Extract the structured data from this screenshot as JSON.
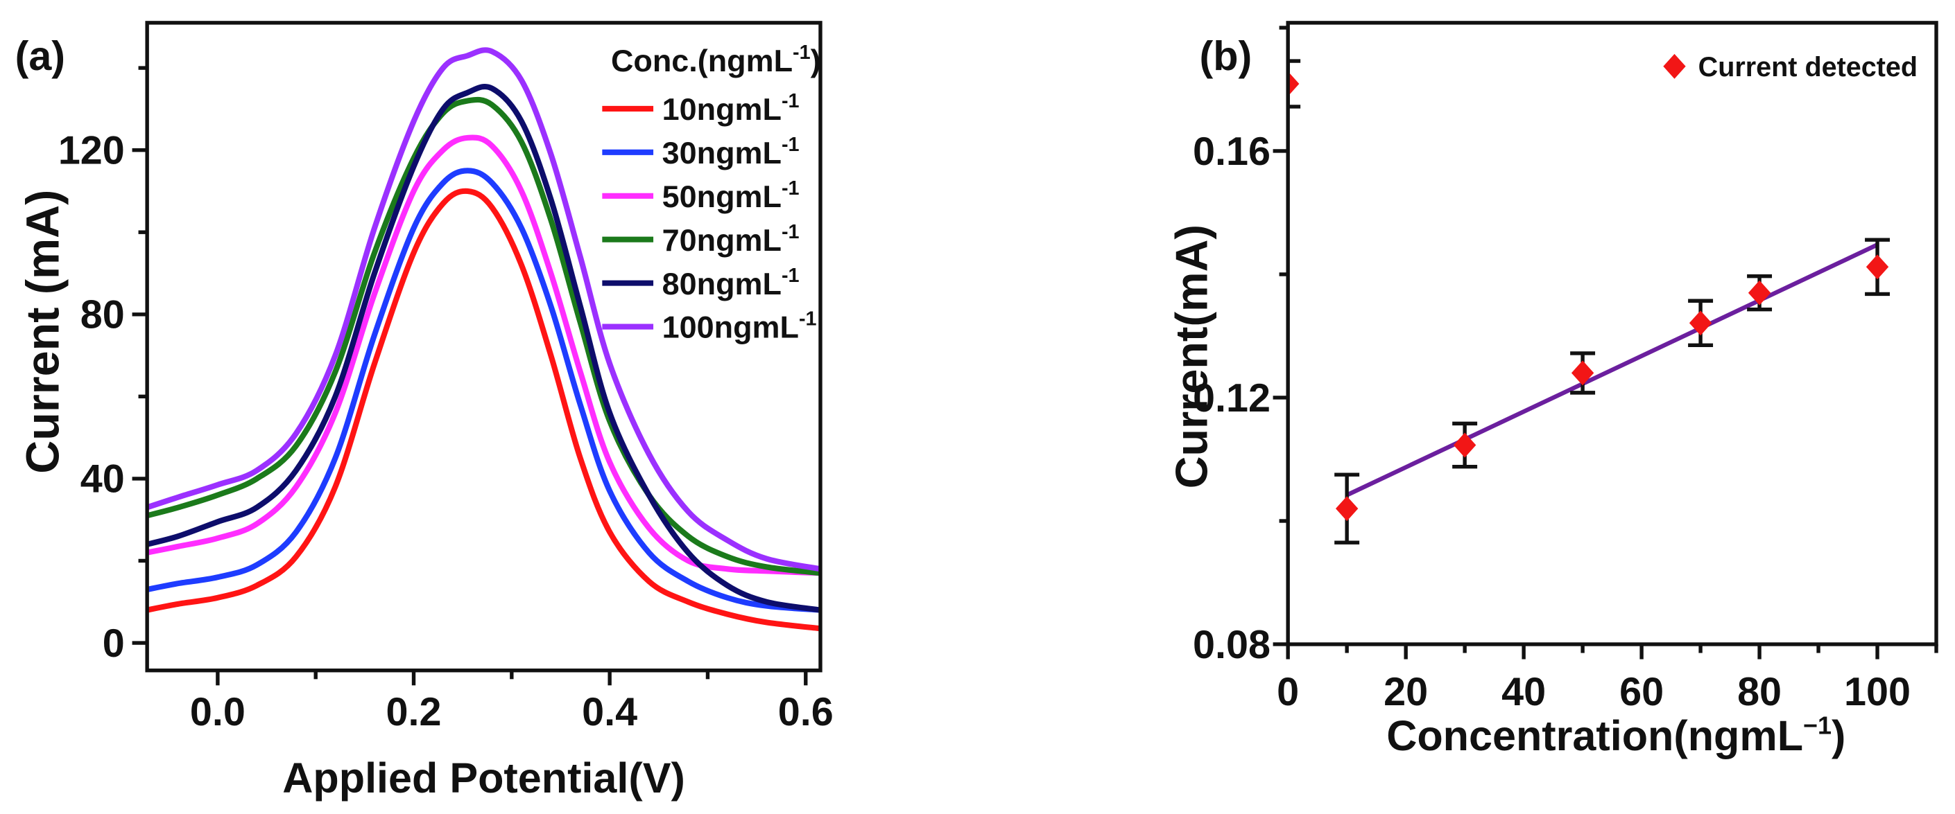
{
  "chart_data": [
    {
      "panel_label": "(a)",
      "type": "line",
      "xlabel": "Applied Potential(V)",
      "ylabel": "Current (mA)",
      "xlim": [
        -0.072,
        0.615
      ],
      "ylim": [
        -6.7,
        151
      ],
      "xticks": [
        0.0,
        0.2,
        0.4,
        0.6
      ],
      "xtick_labels": [
        "0.0",
        "0.2",
        "0.4",
        "0.6"
      ],
      "yticks": [
        0,
        40,
        80,
        120
      ],
      "ytick_labels": [
        "0",
        "40",
        "80",
        "120"
      ],
      "grid": false,
      "legend": {
        "placement": "top-right",
        "title": "Conc.(ngmL",
        "title_sup": "-1",
        "title_end": ")"
      },
      "x": [
        -0.072,
        -0.04,
        0.0,
        0.04,
        0.08,
        0.12,
        0.16,
        0.2,
        0.23,
        0.255,
        0.28,
        0.31,
        0.34,
        0.37,
        0.4,
        0.44,
        0.48,
        0.52,
        0.56,
        0.615
      ],
      "series": [
        {
          "name": "10ngmL",
          "name_sup": "-1",
          "color": "#ff1414",
          "values": [
            8,
            9.5,
            11,
            14,
            21,
            38,
            68,
            95,
            107,
            110,
            106,
            92,
            70,
            45,
            27,
            15,
            10,
            7,
            5,
            3.5
          ]
        },
        {
          "name": "30ngmL",
          "name_sup": "-1",
          "color": "#1e3cff",
          "values": [
            13,
            14.5,
            16,
            19,
            27,
            45,
            75,
            101,
            112,
            115,
            112,
            101,
            82,
            58,
            37,
            22,
            15,
            11,
            9,
            8
          ]
        },
        {
          "name": "50ngmL",
          "name_sup": "-1",
          "color": "#ff2dff",
          "values": [
            22,
            23.5,
            25.5,
            29,
            38,
            56,
            85,
            110,
            120,
            123,
            121,
            110,
            90,
            66,
            44,
            28,
            20,
            18,
            17.5,
            17
          ]
        },
        {
          "name": "70ngmL",
          "name_sup": "-1",
          "color": "#1b7a1b",
          "values": [
            31,
            33,
            36,
            40,
            48,
            66,
            95,
            118,
            129,
            132,
            131,
            122,
            103,
            78,
            54,
            36,
            26,
            21,
            18.5,
            17
          ]
        },
        {
          "name": "80ngmL",
          "name_sup": "-1",
          "color": "#0d0d6b",
          "values": [
            24,
            26,
            29.5,
            33,
            42,
            60,
            90,
            116,
            130,
            134,
            135,
            127,
            108,
            82,
            56,
            36,
            22,
            14,
            10,
            8
          ]
        },
        {
          "name": "100ngmL",
          "name_sup": "-1",
          "color": "#9b30ff",
          "values": [
            33,
            35.5,
            38.5,
            42,
            51,
            70,
            101,
            127,
            140,
            143,
            144,
            137,
            119,
            94,
            68,
            46,
            32,
            25,
            20.5,
            18
          ]
        }
      ]
    },
    {
      "panel_label": "(b)",
      "type": "scatter",
      "xlabel": "Concentration(ngmL",
      "xlabel_sup": "−1",
      "xlabel_end": ")",
      "ylabel": "Current(mA)",
      "xlim": [
        0,
        110
      ],
      "ylim": [
        0.08,
        0.1808
      ],
      "xticks": [
        0,
        20,
        40,
        60,
        80,
        100
      ],
      "xtick_labels": [
        "0",
        "20",
        "40",
        "60",
        "80",
        "100"
      ],
      "yticks": [
        0.08,
        0.12,
        0.16
      ],
      "ytick_labels": [
        "0.08",
        "0.12",
        "0.16"
      ],
      "grid": false,
      "legend": {
        "placement": "top-right"
      },
      "series": [
        {
          "name": "Current detected",
          "color": "#f21616",
          "marker": "diamond",
          "error_color": "#111111",
          "x": [
            0,
            10,
            30,
            50,
            70,
            80,
            100
          ],
          "y": [
            0.1709,
            0.102,
            0.1123,
            0.124,
            0.1321,
            0.137,
            0.1412
          ],
          "error": [
            0.0037,
            0.0055,
            0.0035,
            0.0032,
            0.0036,
            0.0027,
            0.0044
          ]
        }
      ],
      "fit_line": {
        "color": "#6b1f9e",
        "x": [
          10,
          100
        ],
        "y": [
          0.1042,
          0.1448
        ]
      }
    }
  ]
}
